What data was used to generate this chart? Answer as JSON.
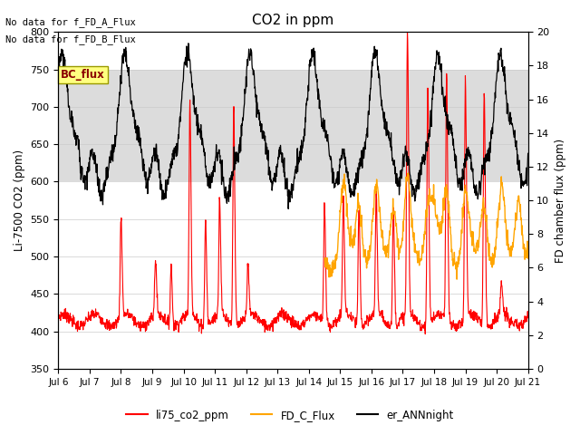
{
  "title": "CO2 in ppm",
  "ylabel_left": "Li-7500 CO2 (ppm)",
  "ylabel_right": "FD chamber flux (ppm)",
  "ylim_left": [
    350,
    800
  ],
  "ylim_right": [
    0,
    20
  ],
  "yticks_left": [
    350,
    400,
    450,
    500,
    550,
    600,
    650,
    700,
    750,
    800
  ],
  "yticks_right": [
    0,
    2,
    4,
    6,
    8,
    10,
    12,
    14,
    16,
    18,
    20
  ],
  "xtick_labels": [
    "Jul 6",
    "Jul 7",
    "Jul 8",
    "Jul 9",
    "Jul 10",
    "Jul 11",
    "Jul 12",
    "Jul 13",
    "Jul 14",
    "Jul 15",
    "Jul 16",
    "Jul 17",
    "Jul 18",
    "Jul 19",
    "Jul 20",
    "Jul 21"
  ],
  "top_left_text1": "No data for f_FD_A_Flux",
  "top_left_text2": "No data for f_FD_B_Flux",
  "bc_flux_label": "BC_flux",
  "legend_labels": [
    "li75_co2_ppm",
    "FD_C_Flux",
    "er_ANNnight"
  ],
  "color_red": "#ff0000",
  "color_orange": "#ffa500",
  "color_black": "#000000",
  "bg_color": "#ffffff",
  "band_color": "#dcdcdc",
  "n_points": 1500
}
